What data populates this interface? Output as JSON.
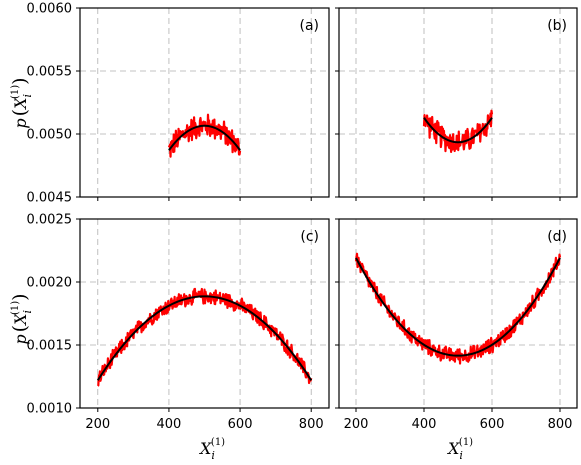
{
  "figure": {
    "ylabel": "p(X_i^(1))",
    "xlabel": "X_i^(1)"
  },
  "colors": {
    "simulation": "#ff0000",
    "fit": "#000000",
    "grid": "#b0b0b0"
  },
  "chart_data": [
    {
      "panel": "(a)",
      "type": "line",
      "x_range": [
        400,
        600
      ],
      "xlim": [
        150,
        850
      ],
      "xticks": [
        "200",
        "400",
        "600",
        "800"
      ],
      "ylim": [
        0.0045,
        0.006
      ],
      "yticks": [
        "0.0045",
        "0.0050",
        "0.0055",
        "0.0060"
      ],
      "fit_curve": {
        "x": [
          400,
          450,
          500,
          550,
          600
        ],
        "y": [
          0.00487,
          0.00502,
          0.00506,
          0.00502,
          0.00487
        ]
      },
      "noise_amplitude": 0.00011
    },
    {
      "panel": "(b)",
      "type": "line",
      "x_range": [
        400,
        600
      ],
      "xlim": [
        150,
        850
      ],
      "xticks": [
        "200",
        "400",
        "600",
        "800"
      ],
      "ylim": [
        0.0045,
        0.006
      ],
      "yticks": [
        "0.0045",
        "0.0050",
        "0.0055",
        "0.0060"
      ],
      "fit_curve": {
        "x": [
          400,
          450,
          500,
          550,
          600
        ],
        "y": [
          0.00513,
          0.00498,
          0.00494,
          0.00498,
          0.00513
        ]
      },
      "noise_amplitude": 0.00011
    },
    {
      "panel": "(c)",
      "type": "line",
      "x_range": [
        200,
        800
      ],
      "xlim": [
        150,
        850
      ],
      "xticks": [
        "200",
        "400",
        "600",
        "800"
      ],
      "ylim": [
        0.001,
        0.0025
      ],
      "yticks": [
        "0.0010",
        "0.0015",
        "0.0020",
        "0.0025"
      ],
      "fit_curve": {
        "x": [
          200,
          300,
          400,
          500,
          600,
          700,
          800
        ],
        "y": [
          0.00122,
          0.00159,
          0.00181,
          0.00189,
          0.00181,
          0.00159,
          0.00122
        ]
      },
      "noise_amplitude": 7e-05
    },
    {
      "panel": "(d)",
      "type": "line",
      "x_range": [
        200,
        800
      ],
      "xlim": [
        150,
        850
      ],
      "xticks": [
        "200",
        "400",
        "600",
        "800"
      ],
      "ylim": [
        0.001,
        0.0025
      ],
      "yticks": [
        "0.0010",
        "0.0015",
        "0.0020",
        "0.0025"
      ],
      "fit_curve": {
        "x": [
          200,
          300,
          400,
          500,
          600,
          700,
          800
        ],
        "y": [
          0.00222,
          0.00169,
          0.00152,
          0.00146,
          0.00152,
          0.00169,
          0.00222
        ]
      },
      "noise_amplitude": 7e-05
    }
  ]
}
